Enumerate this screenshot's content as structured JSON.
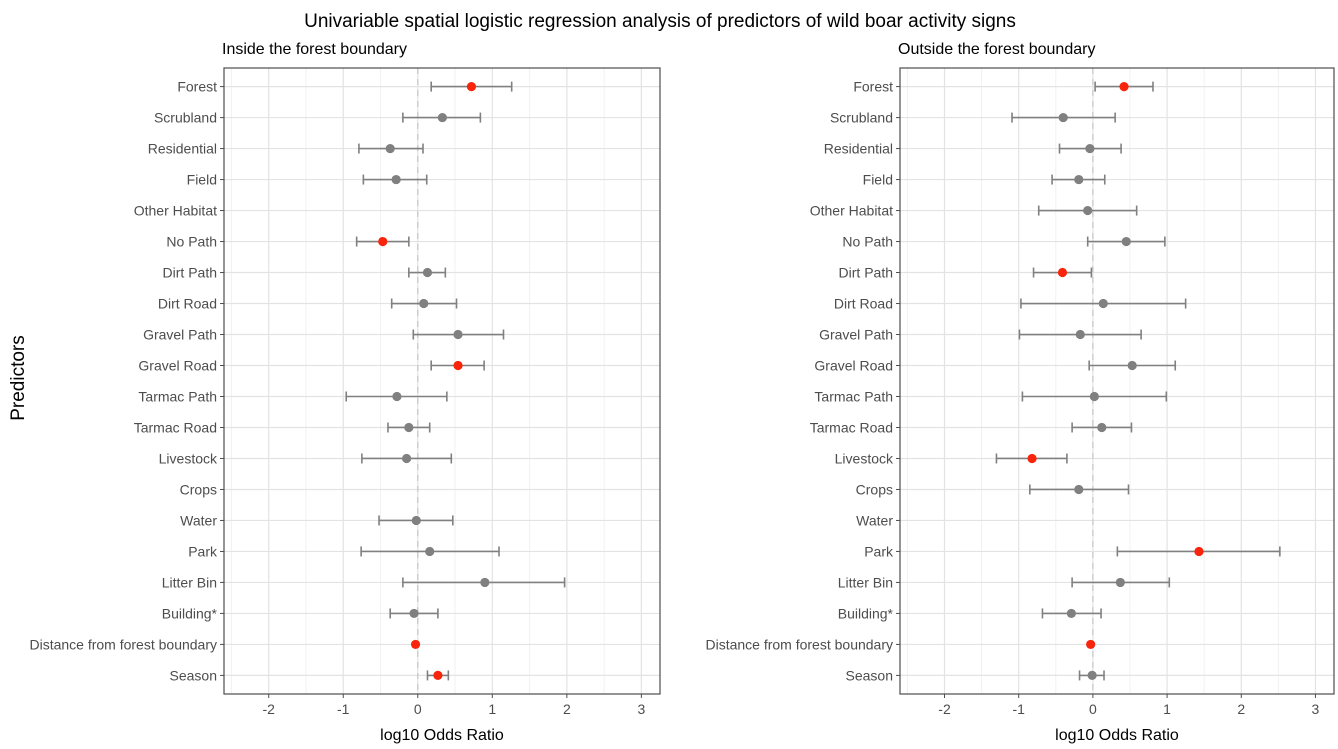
{
  "figure": {
    "title": "Univariable spatial logistic regression analysis of predictors of wild boar activity signs",
    "ylabel": "Predictors"
  },
  "colors": {
    "significant": "#f8250c",
    "non_significant": "#808080",
    "grid_major": "#e3e3e3",
    "grid_minor": "#f1f1f1",
    "zero_line": "#c8c8c8",
    "panel_border": "#4d4d4d",
    "tick_label": "#4d4d4d"
  },
  "chart_data": [
    {
      "type": "scatter",
      "title": "Inside the forest boundary",
      "xlabel": "log10 Odds Ratio",
      "xlim": [
        -2.6,
        3.25
      ],
      "xticks": [
        -2,
        -1,
        0,
        1,
        2,
        3
      ],
      "grid": true,
      "zero_reference_line": true,
      "categories": [
        "Forest",
        "Scrubland",
        "Residential",
        "Field",
        "Other Habitat",
        "No Path",
        "Dirt Path",
        "Dirt Road",
        "Gravel Path",
        "Gravel Road",
        "Tarmac Path",
        "Tarmac Road",
        "Livestock",
        "Crops",
        "Water",
        "Park",
        "Litter Bin",
        "Building*",
        "Distance from forest boundary",
        "Season"
      ],
      "estimate": [
        0.72,
        0.33,
        -0.37,
        -0.29,
        null,
        -0.47,
        0.13,
        0.08,
        0.54,
        0.54,
        -0.28,
        -0.12,
        -0.15,
        null,
        -0.02,
        0.16,
        0.9,
        -0.05,
        -0.03,
        0.27
      ],
      "lower": [
        0.18,
        -0.2,
        -0.79,
        -0.73,
        null,
        -0.82,
        -0.12,
        -0.35,
        -0.06,
        0.18,
        -0.96,
        -0.4,
        -0.75,
        null,
        -0.52,
        -0.76,
        -0.2,
        -0.37,
        -0.03,
        0.13
      ],
      "upper": [
        1.26,
        0.84,
        0.07,
        0.12,
        null,
        -0.12,
        0.37,
        0.52,
        1.15,
        0.89,
        0.39,
        0.16,
        0.45,
        null,
        0.47,
        1.09,
        1.97,
        0.27,
        -0.03,
        0.41
      ],
      "significant": [
        true,
        false,
        false,
        false,
        false,
        true,
        false,
        false,
        false,
        true,
        false,
        false,
        false,
        false,
        false,
        false,
        false,
        false,
        true,
        true
      ]
    },
    {
      "type": "scatter",
      "title": "Outside the forest boundary",
      "xlabel": "log10 Odds Ratio",
      "xlim": [
        -2.6,
        3.25
      ],
      "xticks": [
        -2,
        -1,
        0,
        1,
        2,
        3
      ],
      "grid": true,
      "zero_reference_line": true,
      "categories": [
        "Forest",
        "Scrubland",
        "Residential",
        "Field",
        "Other Habitat",
        "No Path",
        "Dirt Path",
        "Dirt Road",
        "Gravel Path",
        "Gravel Road",
        "Tarmac Path",
        "Tarmac Road",
        "Livestock",
        "Crops",
        "Water",
        "Park",
        "Litter Bin",
        "Building*",
        "Distance from forest boundary",
        "Season"
      ],
      "estimate": [
        0.42,
        -0.4,
        -0.04,
        -0.19,
        -0.07,
        0.45,
        -0.41,
        0.14,
        -0.17,
        0.53,
        0.02,
        0.12,
        -0.82,
        -0.19,
        null,
        1.43,
        0.37,
        -0.29,
        -0.03,
        -0.01
      ],
      "lower": [
        0.03,
        -1.09,
        -0.45,
        -0.55,
        -0.73,
        -0.07,
        -0.8,
        -0.97,
        -0.99,
        -0.05,
        -0.95,
        -0.28,
        -1.3,
        -0.85,
        null,
        0.33,
        -0.28,
        -0.68,
        -0.03,
        -0.18
      ],
      "upper": [
        0.81,
        0.3,
        0.38,
        0.16,
        0.59,
        0.97,
        -0.02,
        1.25,
        0.65,
        1.11,
        0.99,
        0.52,
        -0.35,
        0.48,
        null,
        2.52,
        1.03,
        0.11,
        -0.03,
        0.15
      ],
      "significant": [
        true,
        false,
        false,
        false,
        false,
        false,
        true,
        false,
        false,
        false,
        false,
        false,
        true,
        false,
        false,
        true,
        false,
        false,
        true,
        false
      ]
    }
  ]
}
